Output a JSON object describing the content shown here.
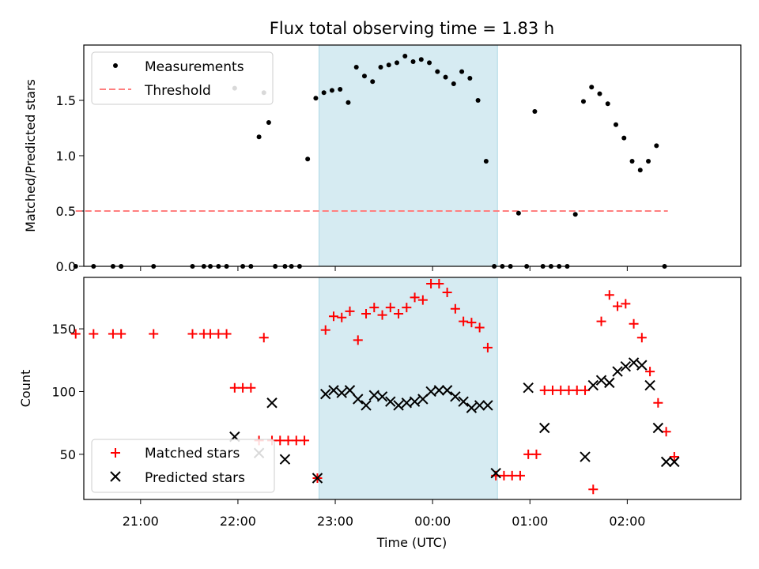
{
  "title": "Flux total observing time = 1.83 h",
  "colors": {
    "measurement": "#000000",
    "threshold": "#ff7f7f",
    "matched": "#ff0000",
    "predicted": "#000000",
    "shade": "#add8e6"
  },
  "chart_data": [
    {
      "type": "scatter",
      "ylabel": "Matched/Predicted stars",
      "ylim": [
        0,
        2.0
      ],
      "yticks": [
        0.0,
        0.5,
        1.0,
        1.5
      ],
      "ytick_labels": [
        "0.0",
        "0.5",
        "1.0",
        "1.5"
      ],
      "xlim": [
        "20:25",
        "03:10"
      ],
      "legend": {
        "placement": "top-left",
        "entries": [
          "Measurements",
          "Threshold"
        ]
      },
      "shaded_span": [
        "22:50",
        "00:40"
      ],
      "threshold": {
        "name": "Threshold",
        "y": 0.5,
        "x": [
          "20:20",
          "02:25"
        ]
      },
      "series": [
        {
          "name": "Measurements",
          "x": [
            "20:20",
            "20:31",
            "20:43",
            "20:48",
            "21:08",
            "21:32",
            "21:39",
            "21:43",
            "21:48",
            "21:53",
            "21:58",
            "22:03",
            "22:08",
            "22:13",
            "22:16",
            "22:19",
            "22:23",
            "22:29",
            "22:33",
            "22:38",
            "22:43",
            "22:48",
            "22:53",
            "22:58",
            "23:03",
            "23:08",
            "23:13",
            "23:18",
            "23:23",
            "23:28",
            "23:33",
            "23:38",
            "23:43",
            "23:48",
            "23:53",
            "23:58",
            "00:03",
            "00:08",
            "00:13",
            "00:18",
            "00:23",
            "00:28",
            "00:33",
            "00:38",
            "00:43",
            "00:48",
            "00:53",
            "00:58",
            "01:03",
            "01:08",
            "01:13",
            "01:18",
            "01:23",
            "01:28",
            "01:33",
            "01:38",
            "01:43",
            "01:48",
            "01:53",
            "01:58",
            "02:03",
            "02:08",
            "02:13",
            "02:18",
            "02:23"
          ],
          "y": [
            0,
            0,
            0,
            0,
            0,
            0,
            0,
            0,
            0,
            0,
            1.61,
            0,
            0,
            1.17,
            1.57,
            1.3,
            0,
            0,
            0,
            0,
            0.97,
            1.52,
            1.57,
            1.59,
            1.6,
            1.48,
            1.8,
            1.72,
            1.67,
            1.8,
            1.82,
            1.84,
            1.9,
            1.85,
            1.87,
            1.84,
            1.76,
            1.71,
            1.65,
            1.76,
            1.7,
            1.5,
            0.95,
            0,
            0,
            0,
            0.48,
            0,
            1.4,
            0,
            0,
            0,
            0,
            0.47,
            1.49,
            1.62,
            1.56,
            1.47,
            1.28,
            1.16,
            0.95,
            0.87,
            0.95,
            1.09,
            0
          ]
        }
      ]
    },
    {
      "type": "scatter",
      "xlabel": "Time (UTC)",
      "ylabel": "Count",
      "ylim": [
        14,
        191
      ],
      "yticks": [
        50,
        100,
        150
      ],
      "ytick_labels": [
        "50",
        "100",
        "150"
      ],
      "xticks": [
        "21:00",
        "22:00",
        "23:00",
        "00:00",
        "01:00",
        "02:00"
      ],
      "xlim": [
        "20:25",
        "03:10"
      ],
      "legend": {
        "placement": "bottom-left",
        "entries": [
          "Matched stars",
          "Predicted stars"
        ]
      },
      "shaded_span": [
        "22:50",
        "00:40"
      ],
      "series": [
        {
          "name": "Matched stars",
          "x": [
            "20:20",
            "20:31",
            "20:43",
            "20:48",
            "21:08",
            "21:32",
            "21:39",
            "21:43",
            "21:48",
            "21:53",
            "21:58",
            "22:03",
            "22:08",
            "22:13",
            "22:16",
            "22:21",
            "22:26",
            "22:31",
            "22:36",
            "22:41",
            "22:49",
            "22:54",
            "22:59",
            "23:04",
            "23:09",
            "23:14",
            "23:19",
            "23:24",
            "23:29",
            "23:34",
            "23:39",
            "23:44",
            "23:49",
            "23:54",
            "23:59",
            "00:04",
            "00:09",
            "00:14",
            "00:19",
            "00:24",
            "00:29",
            "00:34",
            "00:39",
            "00:44",
            "00:49",
            "00:54",
            "00:59",
            "01:04",
            "01:09",
            "01:14",
            "01:19",
            "01:24",
            "01:29",
            "01:34",
            "01:39",
            "01:44",
            "01:49",
            "01:54",
            "01:59",
            "02:04",
            "02:09",
            "02:14",
            "02:19",
            "02:24",
            "02:29"
          ],
          "y": [
            146,
            146,
            146,
            146,
            146,
            146,
            146,
            146,
            146,
            146,
            103,
            103,
            103,
            61,
            143,
            61,
            61,
            61,
            61,
            61,
            31,
            149,
            160,
            159,
            164,
            141,
            162,
            167,
            161,
            167,
            162,
            167,
            175,
            173,
            186,
            186,
            179,
            166,
            156,
            155,
            151,
            135,
            33,
            33,
            33,
            33,
            50,
            50,
            101,
            101,
            101,
            101,
            101,
            101,
            22,
            156,
            177,
            168,
            170,
            154,
            143,
            116,
            91,
            68,
            48
          ]
        },
        {
          "name": "Predicted stars",
          "x": [
            "21:58",
            "22:13",
            "22:21",
            "22:29",
            "22:49",
            "22:54",
            "22:59",
            "23:04",
            "23:09",
            "23:14",
            "23:19",
            "23:24",
            "23:29",
            "23:34",
            "23:39",
            "23:44",
            "23:49",
            "23:54",
            "23:59",
            "00:04",
            "00:09",
            "00:14",
            "00:19",
            "00:24",
            "00:29",
            "00:34",
            "00:39",
            "00:59",
            "01:09",
            "01:34",
            "01:39",
            "01:44",
            "01:49",
            "01:54",
            "01:59",
            "02:04",
            "02:09",
            "02:14",
            "02:19",
            "02:24",
            "02:29"
          ],
          "y": [
            64,
            51,
            91,
            46,
            31,
            98,
            101,
            99,
            101,
            94,
            89,
            97,
            96,
            92,
            89,
            91,
            92,
            94,
            100,
            101,
            101,
            96,
            92,
            87,
            89,
            89,
            35,
            103,
            71,
            48,
            105,
            109,
            107,
            116,
            120,
            123,
            121,
            105,
            71,
            44,
            44
          ]
        }
      ]
    }
  ]
}
